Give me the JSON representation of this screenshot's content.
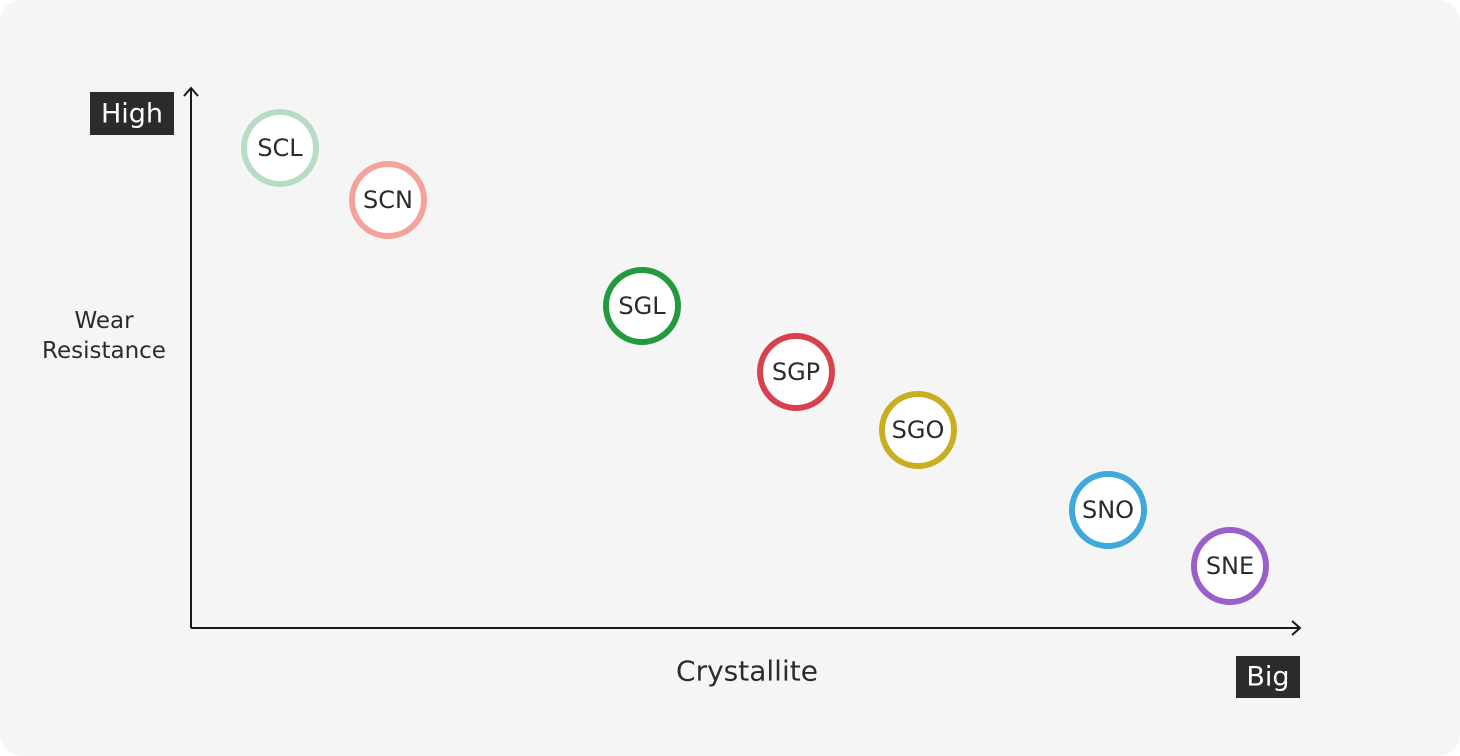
{
  "axes": {
    "y_label": "Wear Resistance",
    "y_end": "High",
    "x_label": "Crystallite",
    "x_end": "Big"
  },
  "nodes": [
    {
      "label": "SCL",
      "color": "#b7dcc3"
    },
    {
      "label": "SCN",
      "color": "#f4a39a"
    },
    {
      "label": "SGL",
      "color": "#259a3c"
    },
    {
      "label": "SGP",
      "color": "#d9414f"
    },
    {
      "label": "SGO",
      "color": "#c9ae22"
    },
    {
      "label": "SNO",
      "color": "#3fa9dc"
    },
    {
      "label": "SNE",
      "color": "#9a5fcb"
    }
  ]
}
